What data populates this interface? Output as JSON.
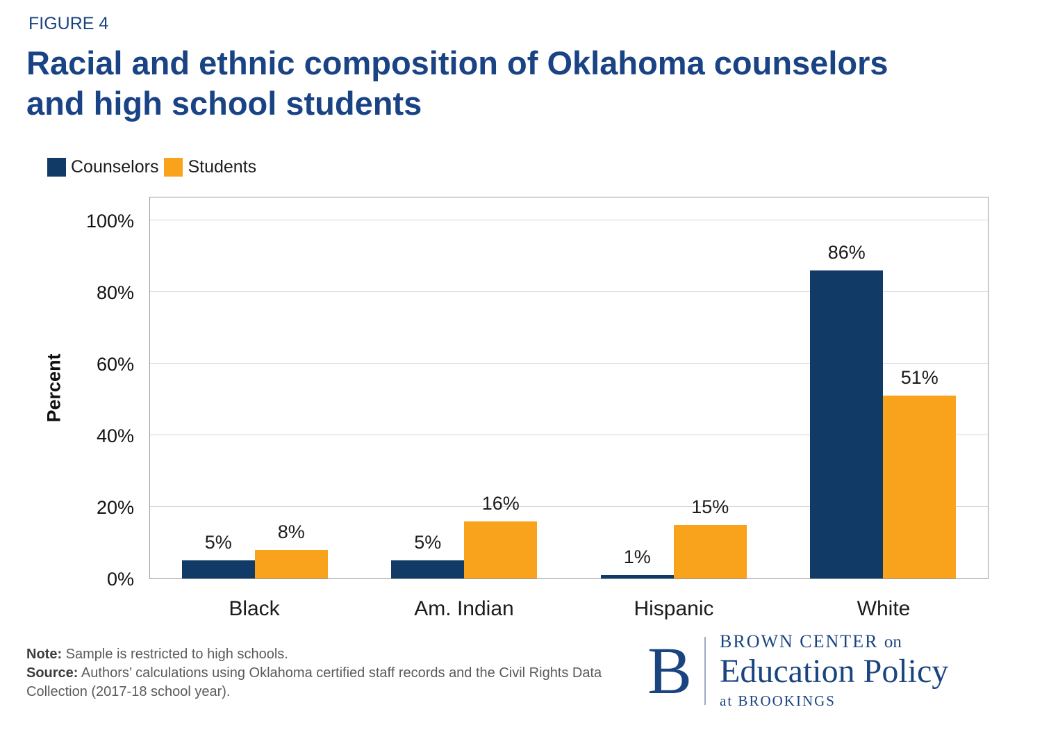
{
  "figure_label": "FIGURE 4",
  "title": {
    "line1": "Racial and ethnic composition of Oklahoma counselors",
    "line2": "and high school students"
  },
  "legend": [
    {
      "label": "Counselors",
      "color": "#113a66"
    },
    {
      "label": "Students",
      "color": "#f9a21b"
    }
  ],
  "chart_data": {
    "type": "bar",
    "categories": [
      "Black",
      "Am. Indian",
      "Hispanic",
      "White"
    ],
    "series": [
      {
        "name": "Counselors",
        "color": "#113a66",
        "values": [
          5,
          5,
          1,
          86
        ],
        "labels": [
          "5%",
          "5%",
          "1%",
          "86%"
        ]
      },
      {
        "name": "Students",
        "color": "#f9a21b",
        "values": [
          8,
          16,
          15,
          51
        ],
        "labels": [
          "8%",
          "16%",
          "15%",
          "51%"
        ]
      }
    ],
    "ylabel": "Percent",
    "ylim": [
      0,
      100
    ],
    "yticks": [
      {
        "value": 0,
        "label": "0%"
      },
      {
        "value": 20,
        "label": "20%"
      },
      {
        "value": 40,
        "label": "40%"
      },
      {
        "value": 60,
        "label": "60%"
      },
      {
        "value": 80,
        "label": "80%"
      },
      {
        "value": 100,
        "label": "100%"
      }
    ],
    "grid": true,
    "legend_position": "top-left"
  },
  "note": {
    "label": "Note:",
    "text": "Sample is restricted to high schools."
  },
  "source": {
    "label": "Source:",
    "text": "Authors’ calculations using Oklahoma certified staff records and the Civil Rights Data Collection (2017-18 school year)."
  },
  "logo": {
    "letter": "B",
    "line1_caps": "BROWN CENTER",
    "line1_small": "on",
    "line2": "Education Policy",
    "line3": "at BROOKINGS"
  }
}
